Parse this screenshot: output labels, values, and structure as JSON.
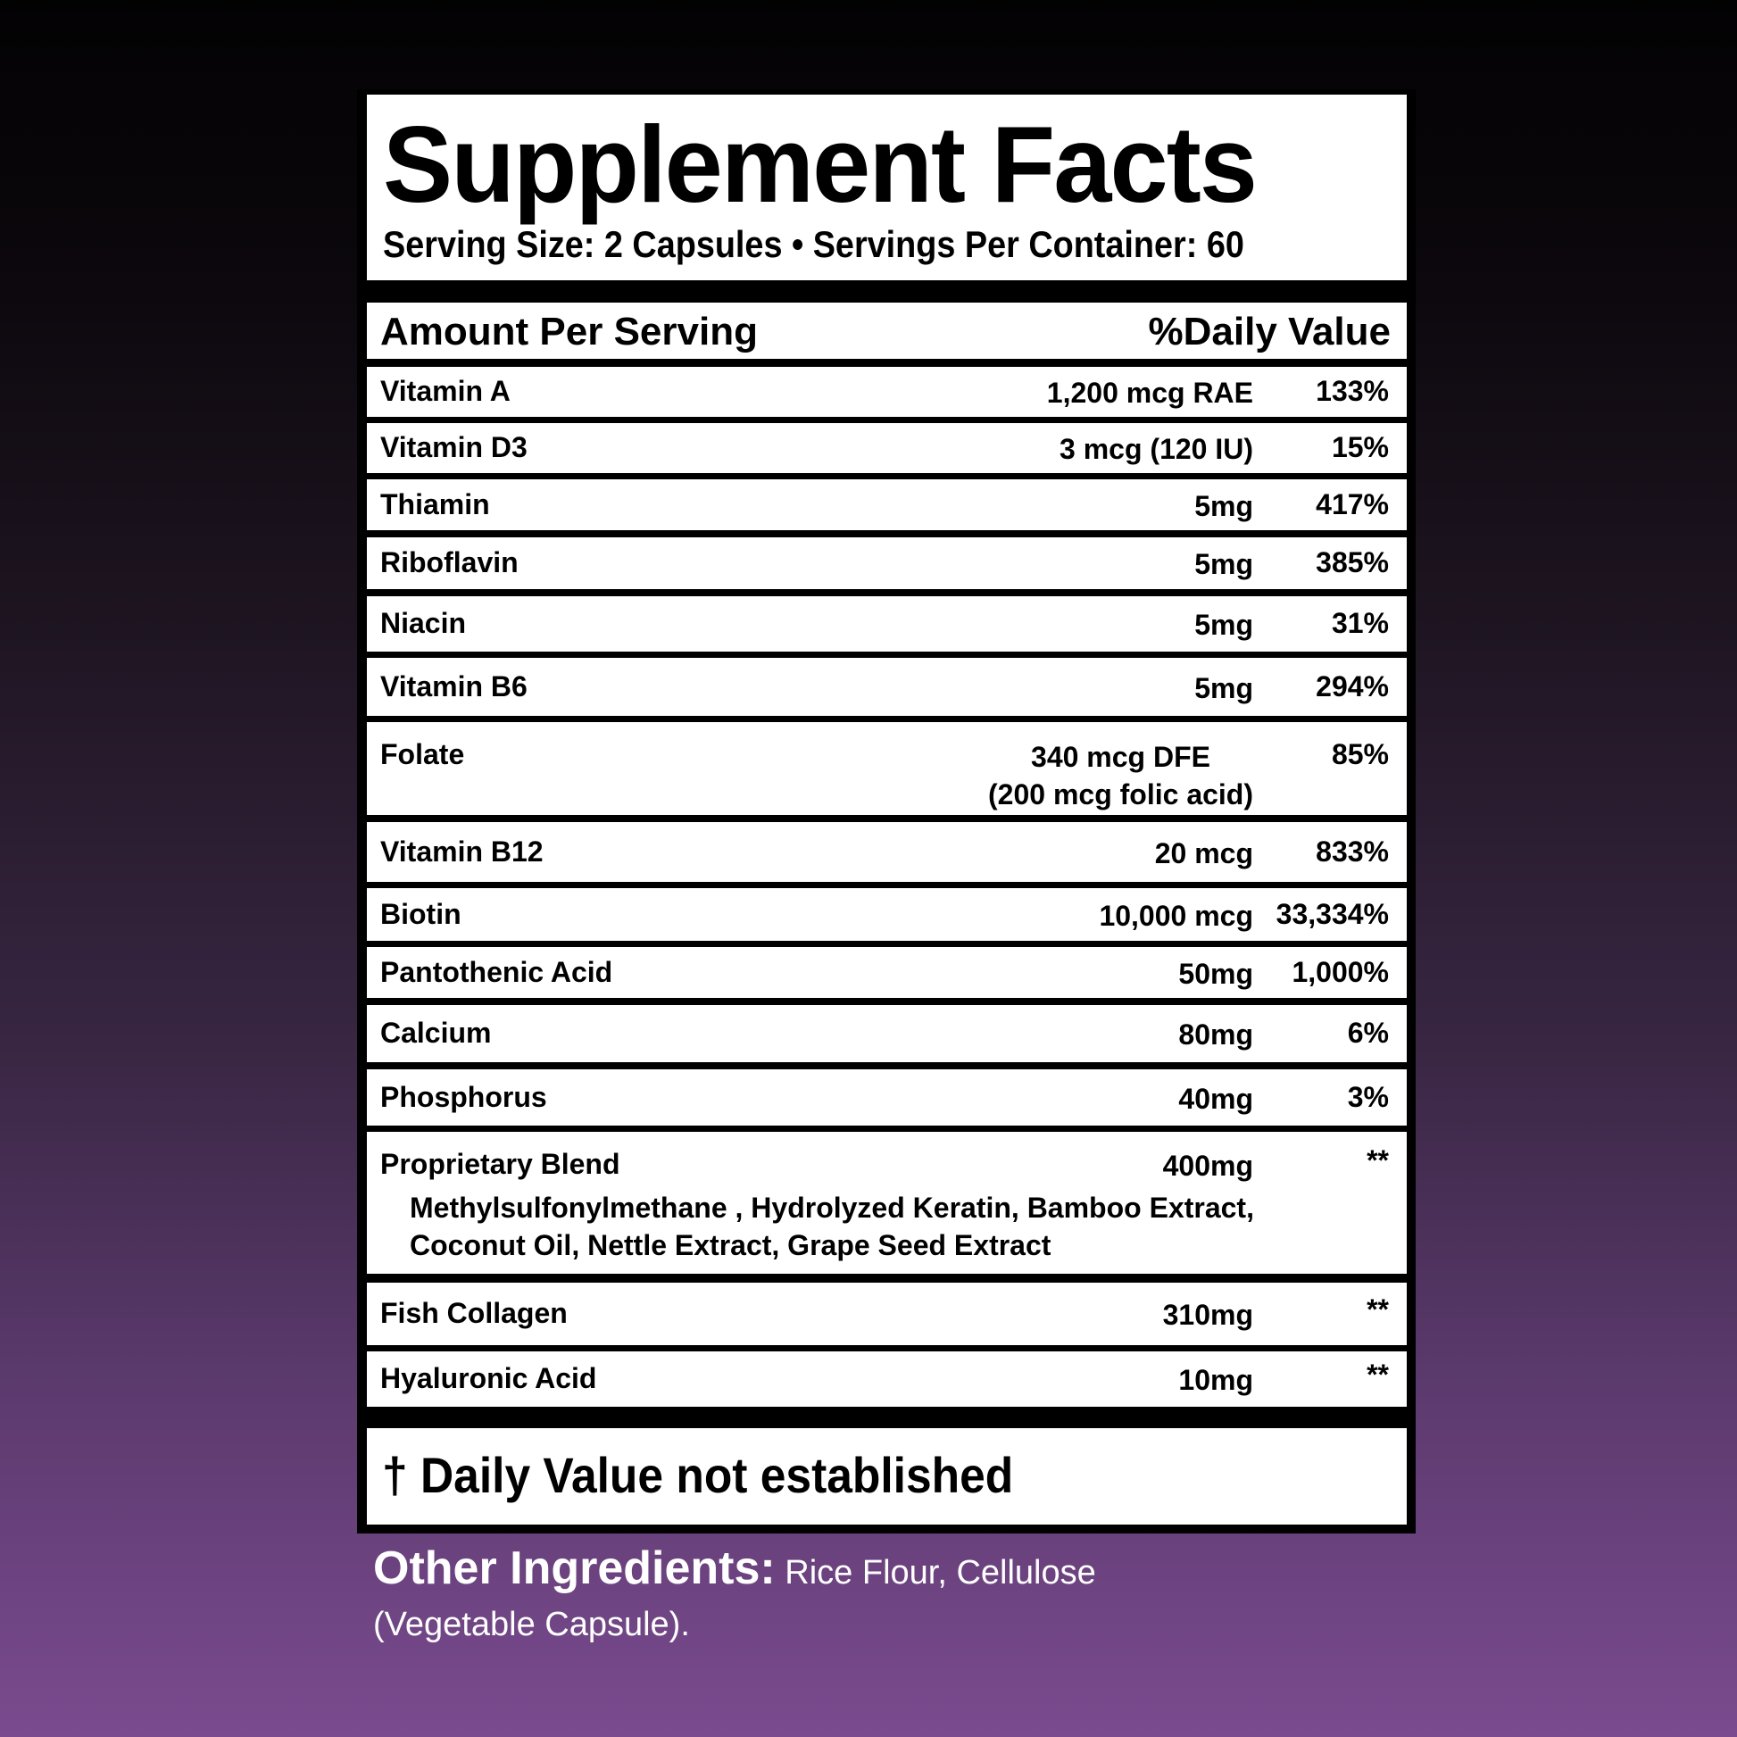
{
  "title": "Supplement Facts",
  "serving": "Serving Size: 2 Capsules • Servings Per Container: 60",
  "header": {
    "amount": "Amount Per Serving",
    "daily_value": "%Daily Value"
  },
  "rows": [
    {
      "name": "Vitamin A",
      "amount": "1,200 mcg RAE",
      "dv": "133%"
    },
    {
      "name": "Vitamin D3",
      "amount": "3 mcg (120 IU)",
      "dv": "15%"
    },
    {
      "name": "Thiamin",
      "amount": "5mg",
      "dv": "417%"
    },
    {
      "name": "Riboflavin",
      "amount": "5mg",
      "dv": "385%"
    },
    {
      "name": "Niacin",
      "amount": "5mg",
      "dv": "31%"
    },
    {
      "name": "Vitamin B6",
      "amount": "5mg",
      "dv": "294%"
    },
    {
      "name": "Folate",
      "amount": "340 mcg DFE",
      "amount2": "(200 mcg folic acid)",
      "dv": "85%"
    },
    {
      "name": "Vitamin B12",
      "amount": "20 mcg",
      "dv": "833%"
    },
    {
      "name": "Biotin",
      "amount": "10,000 mcg",
      "dv": "33,334%"
    },
    {
      "name": "Pantothenic Acid",
      "amount": "50mg",
      "dv": "1,000%"
    },
    {
      "name": "Calcium",
      "amount": "80mg",
      "dv": "6%"
    },
    {
      "name": "Phosphorus",
      "amount": "40mg",
      "dv": "3%"
    },
    {
      "name": "Proprietary Blend",
      "amount": "400mg",
      "dv": "**",
      "sub": "Methylsulfonylmethane , Hydrolyzed Keratin, Bamboo Extract, Coconut Oil, Nettle Extract, Grape Seed Extract"
    },
    {
      "name": "Fish Collagen",
      "amount": "310mg",
      "dv": "**"
    },
    {
      "name": "Hyaluronic Acid",
      "amount": "10mg",
      "dv": "**"
    }
  ],
  "footnote": "† Daily Value not established",
  "other_ingredients": {
    "label": "Other Ingredients:",
    "text": " Rice Flour, Cellulose (Vegetable Capsule)."
  }
}
